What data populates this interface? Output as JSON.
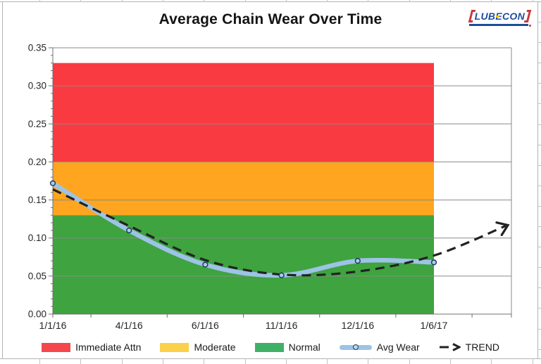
{
  "title": "Average Chain Wear Over Time",
  "logo": {
    "part1": "LUB",
    "part2": "E",
    "part3": "CON",
    "text_color": "#1C4E9E",
    "bracket_color": "#C9393B"
  },
  "chart_data": {
    "type": "line",
    "title": "Average Chain Wear Over Time",
    "x_labels": [
      "1/1/16",
      "4/1/16",
      "6/1/16",
      "11/1/16",
      "12/1/16",
      "1/6/17"
    ],
    "y_ticks": [
      "0.00",
      "0.05",
      "0.10",
      "0.15",
      "0.20",
      "0.25",
      "0.30",
      "0.35"
    ],
    "ylim": [
      0,
      0.35
    ],
    "ytick_step": 0.05,
    "grid": true,
    "legend_position": "bottom",
    "bands": [
      {
        "label": "Immediate Attn",
        "from": 0.2,
        "to": 0.33,
        "color": "#F93B41"
      },
      {
        "label": "Moderate",
        "from": 0.13,
        "to": 0.2,
        "color": "#FFA51F"
      },
      {
        "label": "Normal",
        "from": 0.0,
        "to": 0.13,
        "color": "#3FA33F"
      }
    ],
    "series": [
      {
        "name": "Avg Wear",
        "type": "smooth_line",
        "color": "#9DC3E6",
        "marker": "circle",
        "values": [
          0.172,
          0.11,
          0.065,
          0.051,
          0.07,
          0.068
        ]
      },
      {
        "name": "TREND",
        "type": "dashed_smooth_line_with_arrow",
        "color": "#222222",
        "values": [
          0.164,
          0.116,
          0.071,
          0.052,
          0.056,
          0.077
        ],
        "projected_end_value": 0.116
      }
    ]
  },
  "legend": {
    "items": [
      {
        "label": "Immediate Attn",
        "swatch": "rect",
        "color": "#F4474D"
      },
      {
        "label": "Moderate",
        "swatch": "rect",
        "color": "#FBD04A"
      },
      {
        "label": "Normal",
        "swatch": "rect",
        "color": "#41B067"
      },
      {
        "label": "Avg Wear",
        "swatch": "line_marker",
        "color": "#9DC3E6"
      },
      {
        "label": "TREND",
        "swatch": "dash_arrow",
        "color": "#222222"
      }
    ]
  }
}
